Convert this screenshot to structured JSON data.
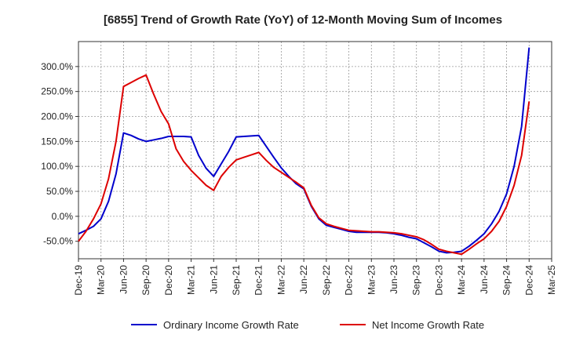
{
  "chart_data": {
    "type": "line",
    "title": "[6855]  Trend of Growth Rate (YoY) of 12-Month Moving Sum of Incomes",
    "xlabel": "",
    "ylabel": "",
    "x_tick_labels": [
      "Dec-19",
      "Mar-20",
      "Jun-20",
      "Sep-20",
      "Dec-20",
      "Mar-21",
      "Jun-21",
      "Sep-21",
      "Dec-21",
      "Mar-22",
      "Jun-22",
      "Sep-22",
      "Dec-22",
      "Mar-23",
      "Jun-23",
      "Sep-23",
      "Dec-23",
      "Mar-24",
      "Jun-24",
      "Sep-24",
      "Dec-24",
      "Mar-25"
    ],
    "y_ticks": [
      -50,
      0,
      50,
      100,
      150,
      200,
      250,
      300
    ],
    "y_tick_labels": [
      "-50.0%",
      "0.0%",
      "50.0%",
      "100.0%",
      "150.0%",
      "200.0%",
      "250.0%",
      "300.0%"
    ],
    "ylim": [
      -85,
      350
    ],
    "grid": true,
    "legend_position": "bottom",
    "x": [
      "2019-12",
      "2020-01",
      "2020-02",
      "2020-03",
      "2020-04",
      "2020-05",
      "2020-06",
      "2020-07",
      "2020-08",
      "2020-09",
      "2020-10",
      "2020-11",
      "2020-12",
      "2021-01",
      "2021-02",
      "2021-03",
      "2021-04",
      "2021-05",
      "2021-06",
      "2021-07",
      "2021-08",
      "2021-09",
      "2021-10",
      "2021-11",
      "2021-12",
      "2022-01",
      "2022-02",
      "2022-03",
      "2022-04",
      "2022-05",
      "2022-06",
      "2022-07",
      "2022-08",
      "2022-09",
      "2022-10",
      "2022-11",
      "2022-12",
      "2023-01",
      "2023-02",
      "2023-03",
      "2023-04",
      "2023-05",
      "2023-06",
      "2023-07",
      "2023-08",
      "2023-09",
      "2023-10",
      "2023-11",
      "2023-12",
      "2024-01",
      "2024-02",
      "2024-03",
      "2024-04",
      "2024-05",
      "2024-06",
      "2024-07",
      "2024-08",
      "2024-09",
      "2024-10",
      "2024-11",
      "2024-12"
    ],
    "series": [
      {
        "name": "Ordinary Income Growth Rate",
        "color": "#0000cc",
        "values": [
          -35,
          -28,
          -20,
          -5,
          30,
          85,
          167,
          162,
          155,
          150,
          153,
          156,
          160,
          160,
          160,
          159,
          122,
          96,
          80,
          105,
          130,
          159,
          160,
          161,
          162,
          140,
          118,
          97,
          80,
          65,
          55,
          20,
          -5,
          -18,
          -22,
          -26,
          -30,
          -32,
          -32,
          -32,
          -32,
          -33,
          -35,
          -38,
          -42,
          -45,
          -53,
          -61,
          -70,
          -73,
          -72,
          -70,
          -60,
          -48,
          -35,
          -15,
          10,
          45,
          100,
          180,
          338
        ]
      },
      {
        "name": "Net Income Growth Rate",
        "color": "#dd0000",
        "values": [
          -50,
          -30,
          -5,
          25,
          75,
          150,
          260,
          268,
          276,
          283,
          245,
          210,
          185,
          135,
          110,
          92,
          77,
          62,
          52,
          80,
          98,
          113,
          118,
          123,
          128,
          112,
          98,
          88,
          78,
          68,
          57,
          22,
          -3,
          -15,
          -20,
          -24,
          -28,
          -29,
          -30,
          -31,
          -31,
          -32,
          -33,
          -35,
          -38,
          -41,
          -47,
          -56,
          -66,
          -70,
          -73,
          -76,
          -66,
          -55,
          -45,
          -30,
          -10,
          20,
          62,
          122,
          230
        ]
      }
    ]
  }
}
